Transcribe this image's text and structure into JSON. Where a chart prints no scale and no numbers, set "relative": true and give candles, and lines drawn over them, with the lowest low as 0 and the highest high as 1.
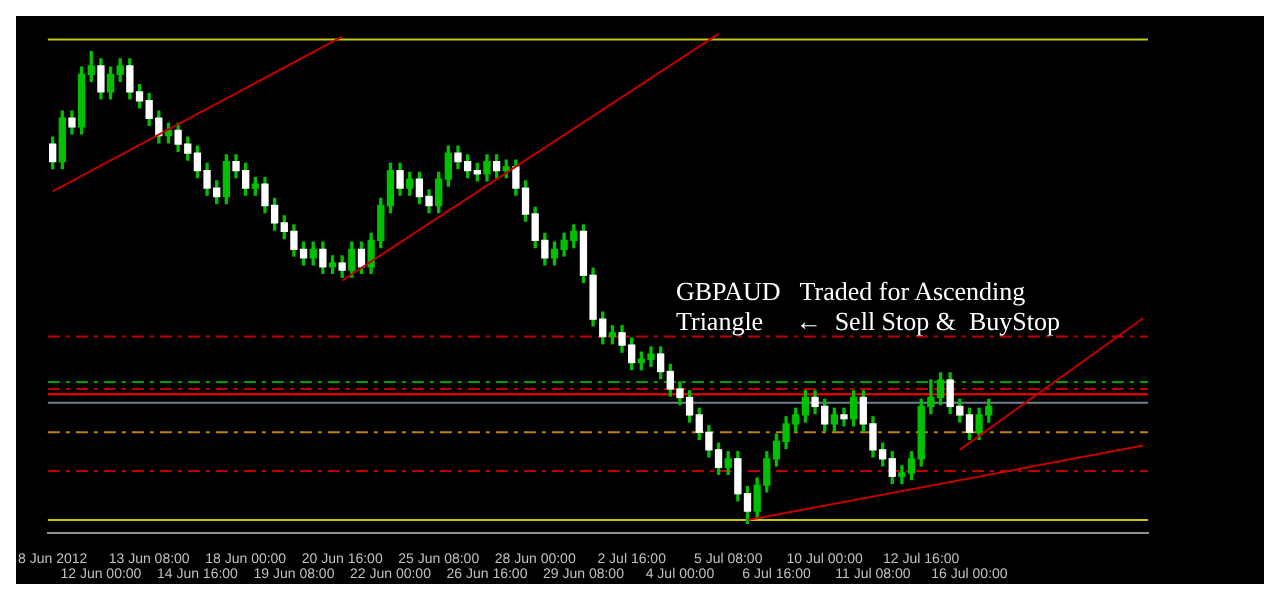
{
  "chart_data": {
    "type": "candlestick",
    "relative": true,
    "categories": [
      "8 Jun 2012",
      null,
      null,
      null,
      null,
      "12 Jun 00:00",
      null,
      null,
      null,
      null,
      "13 Jun 08:00",
      null,
      null,
      null,
      null,
      "14 Jun 16:00",
      null,
      null,
      null,
      null,
      "18 Jun 00:00",
      null,
      null,
      null,
      null,
      "19 Jun 08:00",
      null,
      null,
      null,
      null,
      "20 Jun 16:00",
      null,
      null,
      null,
      null,
      "22 Jun 00:00",
      null,
      null,
      null,
      null,
      "25 Jun 08:00",
      null,
      null,
      null,
      null,
      "26 Jun 16:00",
      null,
      null,
      null,
      null,
      "28 Jun 00:00",
      null,
      null,
      null,
      null,
      "29 Jun 08:00",
      null,
      null,
      null,
      null,
      "2 Jul 16:00",
      null,
      null,
      null,
      null,
      "4 Jul 00:00",
      null,
      null,
      null,
      null,
      "5 Jul 08:00",
      null,
      null,
      null,
      null,
      "6 Jul 16:00",
      null,
      null,
      null,
      null,
      "10 Jul 00:00",
      null,
      null,
      null,
      null,
      "11 Jul 08:00",
      null,
      null,
      null,
      null,
      "12 Jul 16:00",
      null,
      null,
      null,
      null,
      "16 Jul 00:00",
      null,
      null,
      null,
      null,
      null,
      null,
      null,
      null,
      null,
      null,
      null,
      null,
      null,
      null,
      null,
      null,
      null,
      null
    ],
    "ohlc": [
      [
        0.804,
        0.819,
        0.752,
        0.767
      ],
      [
        0.767,
        0.874,
        0.752,
        0.859
      ],
      [
        0.859,
        0.874,
        0.826,
        0.841
      ],
      [
        0.841,
        0.967,
        0.826,
        0.952
      ],
      [
        0.952,
        1,
        0.937,
        0.97
      ],
      [
        0.97,
        0.985,
        0.9,
        0.915
      ],
      [
        0.915,
        0.967,
        0.9,
        0.952
      ],
      [
        0.952,
        0.985,
        0.937,
        0.97
      ],
      [
        0.97,
        0.985,
        0.9,
        0.915
      ],
      [
        0.915,
        0.93,
        0.881,
        0.896
      ],
      [
        0.896,
        0.911,
        0.844,
        0.859
      ],
      [
        0.859,
        0.874,
        0.807,
        0.822
      ],
      [
        0.822,
        0.848,
        0.807,
        0.833
      ],
      [
        0.833,
        0.848,
        0.789,
        0.804
      ],
      [
        0.804,
        0.819,
        0.77,
        0.785
      ],
      [
        0.785,
        0.8,
        0.733,
        0.748
      ],
      [
        0.748,
        0.763,
        0.696,
        0.711
      ],
      [
        0.711,
        0.726,
        0.678,
        0.693
      ],
      [
        0.693,
        0.781,
        0.678,
        0.767
      ],
      [
        0.767,
        0.781,
        0.733,
        0.748
      ],
      [
        0.748,
        0.763,
        0.696,
        0.711
      ],
      [
        0.711,
        0.733,
        0.696,
        0.719
      ],
      [
        0.719,
        0.733,
        0.659,
        0.674
      ],
      [
        0.674,
        0.689,
        0.622,
        0.637
      ],
      [
        0.637,
        0.652,
        0.604,
        0.619
      ],
      [
        0.619,
        0.633,
        0.567,
        0.581
      ],
      [
        0.581,
        0.596,
        0.548,
        0.563
      ],
      [
        0.563,
        0.596,
        0.548,
        0.581
      ],
      [
        0.581,
        0.596,
        0.53,
        0.544
      ],
      [
        0.544,
        0.567,
        0.53,
        0.552
      ],
      [
        0.552,
        0.567,
        0.522,
        0.537
      ],
      [
        0.537,
        0.596,
        0.522,
        0.581
      ],
      [
        0.581,
        0.596,
        0.53,
        0.544
      ],
      [
        0.544,
        0.615,
        0.53,
        0.6
      ],
      [
        0.6,
        0.689,
        0.585,
        0.674
      ],
      [
        0.674,
        0.763,
        0.659,
        0.748
      ],
      [
        0.748,
        0.763,
        0.696,
        0.711
      ],
      [
        0.711,
        0.744,
        0.696,
        0.73
      ],
      [
        0.73,
        0.744,
        0.678,
        0.693
      ],
      [
        0.693,
        0.707,
        0.659,
        0.674
      ],
      [
        0.674,
        0.744,
        0.659,
        0.73
      ],
      [
        0.73,
        0.8,
        0.715,
        0.785
      ],
      [
        0.785,
        0.8,
        0.752,
        0.767
      ],
      [
        0.767,
        0.781,
        0.733,
        0.748
      ],
      [
        0.748,
        0.763,
        0.726,
        0.741
      ],
      [
        0.741,
        0.781,
        0.726,
        0.767
      ],
      [
        0.767,
        0.781,
        0.733,
        0.748
      ],
      [
        0.748,
        0.77,
        0.733,
        0.756
      ],
      [
        0.756,
        0.77,
        0.696,
        0.711
      ],
      [
        0.711,
        0.726,
        0.641,
        0.656
      ],
      [
        0.656,
        0.67,
        0.585,
        0.6
      ],
      [
        0.6,
        0.615,
        0.548,
        0.563
      ],
      [
        0.563,
        0.596,
        0.548,
        0.581
      ],
      [
        0.581,
        0.615,
        0.567,
        0.6
      ],
      [
        0.6,
        0.633,
        0.585,
        0.619
      ],
      [
        0.619,
        0.633,
        0.511,
        0.526
      ],
      [
        0.526,
        0.541,
        0.419,
        0.433
      ],
      [
        0.433,
        0.448,
        0.381,
        0.396
      ],
      [
        0.396,
        0.419,
        0.381,
        0.404
      ],
      [
        0.404,
        0.419,
        0.363,
        0.378
      ],
      [
        0.378,
        0.393,
        0.326,
        0.341
      ],
      [
        0.341,
        0.363,
        0.326,
        0.348
      ],
      [
        0.348,
        0.374,
        0.333,
        0.359
      ],
      [
        0.359,
        0.374,
        0.307,
        0.322
      ],
      [
        0.322,
        0.337,
        0.27,
        0.285
      ],
      [
        0.285,
        0.3,
        0.252,
        0.267
      ],
      [
        0.267,
        0.281,
        0.215,
        0.23
      ],
      [
        0.23,
        0.244,
        0.178,
        0.193
      ],
      [
        0.193,
        0.207,
        0.141,
        0.156
      ],
      [
        0.156,
        0.17,
        0.104,
        0.119
      ],
      [
        0.119,
        0.152,
        0.104,
        0.137
      ],
      [
        0.137,
        0.152,
        0.048,
        0.063
      ],
      [
        0.063,
        0.078,
        0,
        0.026
      ],
      [
        0.026,
        0.096,
        0.011,
        0.081
      ],
      [
        0.081,
        0.152,
        0.067,
        0.137
      ],
      [
        0.137,
        0.189,
        0.122,
        0.174
      ],
      [
        0.174,
        0.226,
        0.159,
        0.211
      ],
      [
        0.211,
        0.244,
        0.196,
        0.23
      ],
      [
        0.23,
        0.281,
        0.215,
        0.267
      ],
      [
        0.267,
        0.281,
        0.233,
        0.248
      ],
      [
        0.248,
        0.263,
        0.196,
        0.211
      ],
      [
        0.211,
        0.244,
        0.196,
        0.23
      ],
      [
        0.23,
        0.244,
        0.207,
        0.222
      ],
      [
        0.222,
        0.281,
        0.207,
        0.267
      ],
      [
        0.267,
        0.281,
        0.196,
        0.211
      ],
      [
        0.211,
        0.226,
        0.141,
        0.156
      ],
      [
        0.156,
        0.17,
        0.122,
        0.137
      ],
      [
        0.137,
        0.152,
        0.085,
        0.1
      ],
      [
        0.1,
        0.122,
        0.085,
        0.107
      ],
      [
        0.107,
        0.152,
        0.093,
        0.137
      ],
      [
        0.137,
        0.263,
        0.122,
        0.248
      ],
      [
        0.248,
        0.304,
        0.233,
        0.267
      ],
      [
        0.267,
        0.319,
        0.252,
        0.304
      ],
      [
        0.304,
        0.319,
        0.233,
        0.248
      ],
      [
        0.248,
        0.263,
        0.215,
        0.23
      ],
      [
        0.23,
        0.244,
        0.178,
        0.193
      ],
      [
        0.193,
        0.244,
        0.178,
        0.23
      ],
      [
        0.23,
        0.263,
        0.215,
        0.248
      ],
      null,
      null,
      null,
      null,
      null,
      null,
      null,
      null,
      null,
      null,
      null,
      null,
      null,
      null,
      null,
      null
    ],
    "series": [
      {
        "type": "line",
        "color": "#c00000",
        "values": [
          0.704,
          null,
          null,
          null,
          null,
          null,
          null,
          null,
          null,
          null,
          null,
          null,
          null,
          null,
          null,
          null,
          null,
          null,
          null,
          null,
          null,
          null,
          null,
          null,
          null,
          null,
          null,
          null,
          null,
          null,
          1.032,
          null,
          null,
          null,
          null,
          null,
          null,
          null,
          null,
          null,
          null,
          null,
          null,
          null,
          null,
          null,
          null,
          null,
          null,
          null,
          null,
          null,
          null,
          null,
          null,
          null,
          null,
          null,
          null,
          null,
          null,
          null,
          null,
          null,
          null,
          null,
          null,
          null,
          null,
          null,
          null,
          null,
          null,
          null,
          null,
          null,
          null,
          null,
          null,
          null,
          null,
          null,
          null,
          null,
          null,
          null,
          null,
          null,
          null,
          null,
          null,
          null,
          null,
          null,
          null,
          null,
          null,
          null,
          null,
          null,
          null,
          null,
          null,
          null,
          null,
          null,
          null,
          null,
          null,
          null,
          null,
          null,
          null,
          null
        ]
      },
      {
        "type": "line",
        "color": "#c00000",
        "values": [
          null,
          null,
          null,
          null,
          null,
          null,
          null,
          null,
          null,
          null,
          null,
          null,
          null,
          null,
          null,
          null,
          null,
          null,
          null,
          null,
          null,
          null,
          null,
          null,
          null,
          null,
          null,
          null,
          null,
          null,
          0.515,
          null,
          null,
          null,
          null,
          null,
          null,
          null,
          null,
          null,
          null,
          null,
          null,
          null,
          null,
          null,
          null,
          null,
          null,
          null,
          null,
          null,
          null,
          null,
          null,
          null,
          null,
          null,
          null,
          null,
          null,
          null,
          null,
          null,
          null,
          null,
          null,
          null,
          null,
          1.038,
          null,
          null,
          null,
          null,
          null,
          null,
          null,
          null,
          null,
          null,
          null,
          null,
          null,
          null,
          null,
          null,
          null,
          null,
          null,
          null,
          null,
          null,
          null,
          null,
          null,
          null,
          null,
          null,
          null,
          null,
          null,
          null,
          null,
          null,
          null,
          null,
          null,
          null,
          null,
          null,
          null,
          null,
          null,
          null
        ]
      },
      {
        "type": "line",
        "color": "#c00000",
        "values": [
          null,
          null,
          null,
          null,
          null,
          null,
          null,
          null,
          null,
          null,
          null,
          null,
          null,
          null,
          null,
          null,
          null,
          null,
          null,
          null,
          null,
          null,
          null,
          null,
          null,
          null,
          null,
          null,
          null,
          null,
          null,
          null,
          null,
          null,
          null,
          null,
          null,
          null,
          null,
          null,
          null,
          null,
          null,
          null,
          null,
          null,
          null,
          null,
          null,
          null,
          null,
          null,
          null,
          null,
          null,
          null,
          null,
          null,
          null,
          null,
          null,
          null,
          null,
          null,
          null,
          null,
          null,
          null,
          null,
          null,
          null,
          null,
          0.007,
          null,
          null,
          null,
          null,
          null,
          null,
          null,
          null,
          null,
          null,
          null,
          null,
          null,
          null,
          null,
          null,
          null,
          null,
          null,
          null,
          null,
          null,
          null,
          null,
          null,
          null,
          null,
          null,
          null,
          null,
          null,
          null,
          null,
          null,
          null,
          null,
          null,
          null,
          null,
          null,
          0.165
        ]
      },
      {
        "type": "line",
        "color": "#c00000",
        "values": [
          null,
          null,
          null,
          null,
          null,
          null,
          null,
          null,
          null,
          null,
          null,
          null,
          null,
          null,
          null,
          null,
          null,
          null,
          null,
          null,
          null,
          null,
          null,
          null,
          null,
          null,
          null,
          null,
          null,
          null,
          null,
          null,
          null,
          null,
          null,
          null,
          null,
          null,
          null,
          null,
          null,
          null,
          null,
          null,
          null,
          null,
          null,
          null,
          null,
          null,
          null,
          null,
          null,
          null,
          null,
          null,
          null,
          null,
          null,
          null,
          null,
          null,
          null,
          null,
          null,
          null,
          null,
          null,
          null,
          null,
          null,
          null,
          null,
          null,
          null,
          null,
          null,
          null,
          null,
          null,
          null,
          null,
          null,
          null,
          null,
          null,
          null,
          null,
          null,
          null,
          null,
          null,
          null,
          null,
          0.156,
          null,
          null,
          null,
          null,
          null,
          null,
          null,
          null,
          null,
          null,
          null,
          null,
          null,
          null,
          null,
          null,
          null,
          null,
          0.435
        ]
      }
    ],
    "ref_lines": [
      {
        "axis": "y",
        "value": 1.026,
        "color": "#c8c800",
        "line_style": "solid"
      },
      {
        "axis": "y",
        "value": 0.007,
        "color": "#c8c800",
        "line_style": "solid"
      },
      {
        "axis": "y",
        "value": 0.396,
        "color": "#c00000",
        "line_style": "dashed"
      },
      {
        "axis": "y",
        "value": 0.3,
        "color": "#00a000",
        "line_style": "dashed"
      },
      {
        "axis": "y",
        "value": 0.285,
        "color": "#c00000",
        "line_style": "dashed"
      },
      {
        "axis": "y",
        "value": 0.274,
        "color": "#ff0000",
        "line_style": "solid"
      },
      {
        "axis": "y",
        "value": 0.256,
        "color": "#708090",
        "line_style": "solid"
      },
      {
        "axis": "y",
        "value": 0.193,
        "color": "#c08000",
        "line_style": "dashed"
      },
      {
        "axis": "y",
        "value": 0.111,
        "color": "#c00000",
        "line_style": "dashed"
      }
    ],
    "annotations": [
      "GBPAUD   Traded for Ascending\nTriangle     ←  Sell Stop &  BuyStop"
    ]
  }
}
